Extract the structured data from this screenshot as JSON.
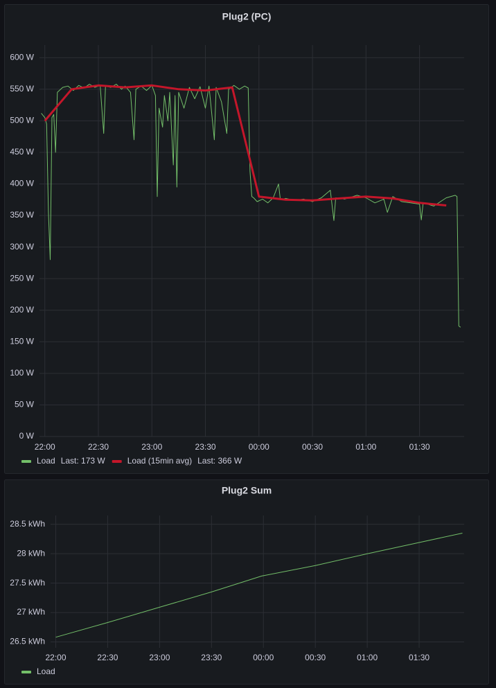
{
  "chart_data": [
    {
      "type": "line",
      "title": "Plug2 (PC)",
      "xlim": [
        "21:57",
        "01:55"
      ],
      "xticks": [
        "22:00",
        "22:30",
        "23:00",
        "23:30",
        "00:00",
        "00:30",
        "01:00",
        "01:30"
      ],
      "ylim": [
        0,
        620
      ],
      "yticks": [
        {
          "value": 0,
          "label": "0 W"
        },
        {
          "value": 50,
          "label": "50 W"
        },
        {
          "value": 100,
          "label": "100 W"
        },
        {
          "value": 150,
          "label": "150 W"
        },
        {
          "value": 200,
          "label": "200 W"
        },
        {
          "value": 250,
          "label": "250 W"
        },
        {
          "value": 300,
          "label": "300 W"
        },
        {
          "value": 350,
          "label": "350 W"
        },
        {
          "value": 400,
          "label": "400 W"
        },
        {
          "value": 450,
          "label": "450 W"
        },
        {
          "value": 500,
          "label": "500 W"
        },
        {
          "value": 550,
          "label": "550 W"
        },
        {
          "value": 600,
          "label": "600 W"
        }
      ],
      "grid": true,
      "series": [
        {
          "name": "Load",
          "legend_value": "Last: 173 W",
          "color": "#73bf69",
          "width": 1,
          "x": [
            "21:58",
            "22:00",
            "22:01",
            "22:02",
            "22:03",
            "22:04",
            "22:05",
            "22:06",
            "22:07",
            "22:10",
            "22:13",
            "22:16",
            "22:19",
            "22:22",
            "22:25",
            "22:28",
            "22:31",
            "22:33",
            "22:34",
            "22:37",
            "22:40",
            "22:43",
            "22:45",
            "22:48",
            "22:50",
            "22:51",
            "22:54",
            "22:57",
            "23:00",
            "23:02",
            "23:03",
            "23:04",
            "23:06",
            "23:07",
            "23:09",
            "23:10",
            "23:12",
            "23:13",
            "23:14",
            "23:15",
            "23:18",
            "23:21",
            "23:24",
            "23:27",
            "23:30",
            "23:32",
            "23:35",
            "23:36",
            "23:39",
            "23:42",
            "23:43",
            "23:46",
            "23:49",
            "23:52",
            "23:54",
            "23:55",
            "23:56",
            "23:57",
            "23:59",
            "00:02",
            "00:05",
            "00:08",
            "00:11",
            "00:12",
            "00:15",
            "00:20",
            "00:25",
            "00:30",
            "00:35",
            "00:40",
            "00:42",
            "00:43",
            "00:48",
            "00:55",
            "01:00",
            "01:05",
            "01:10",
            "01:12",
            "01:15",
            "01:20",
            "01:25",
            "01:30",
            "01:31",
            "01:32",
            "01:38",
            "01:45",
            "01:50",
            "01:51",
            "01:52",
            "01:53"
          ],
          "values": [
            512,
            505,
            495,
            355,
            280,
            505,
            510,
            450,
            545,
            553,
            555,
            548,
            556,
            552,
            558,
            553,
            556,
            480,
            555,
            553,
            558,
            550,
            555,
            545,
            470,
            550,
            555,
            548,
            556,
            540,
            380,
            520,
            490,
            540,
            500,
            545,
            430,
            540,
            395,
            545,
            520,
            553,
            535,
            554,
            520,
            555,
            470,
            553,
            530,
            480,
            550,
            556,
            550,
            555,
            552,
            420,
            380,
            378,
            372,
            376,
            370,
            378,
            400,
            375,
            377,
            374,
            376,
            372,
            378,
            390,
            342,
            378,
            376,
            382,
            378,
            370,
            376,
            355,
            380,
            372,
            370,
            368,
            343,
            370,
            365,
            378,
            382,
            380,
            175,
            173
          ]
        },
        {
          "name": "Load (15min avg)",
          "legend_value": "Last: 366 W",
          "color": "#c4162a",
          "width": 3,
          "x": [
            "22:00",
            "22:15",
            "22:30",
            "22:45",
            "23:00",
            "23:15",
            "23:30",
            "23:45",
            "00:00",
            "00:15",
            "00:30",
            "00:45",
            "01:00",
            "01:15",
            "01:30",
            "01:45"
          ],
          "values": [
            500,
            550,
            556,
            553,
            556,
            550,
            548,
            553,
            380,
            375,
            374,
            377,
            380,
            377,
            370,
            366
          ]
        }
      ]
    },
    {
      "type": "line",
      "title": "Plug2 Sum",
      "xlim": [
        "21:57",
        "01:56"
      ],
      "xticks": [
        "22:00",
        "22:30",
        "23:00",
        "23:30",
        "00:00",
        "00:30",
        "01:00",
        "01:30"
      ],
      "ylim": [
        26.4,
        28.65
      ],
      "yticks": [
        {
          "value": 26.5,
          "label": "26.5 kWh"
        },
        {
          "value": 27,
          "label": "27 kWh"
        },
        {
          "value": 27.5,
          "label": "27.5 kWh"
        },
        {
          "value": 28,
          "label": "28 kWh"
        },
        {
          "value": 28.5,
          "label": "28.5 kWh"
        }
      ],
      "grid": true,
      "series": [
        {
          "name": "Load",
          "color": "#73bf69",
          "width": 1,
          "x": [
            "22:00",
            "22:30",
            "23:00",
            "23:30",
            "23:59",
            "00:30",
            "01:00",
            "01:30",
            "01:55"
          ],
          "values": [
            26.58,
            26.83,
            27.09,
            27.35,
            27.62,
            27.8,
            28.0,
            28.19,
            28.35
          ]
        }
      ]
    }
  ]
}
